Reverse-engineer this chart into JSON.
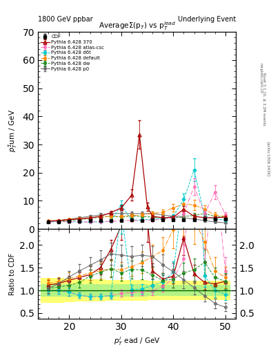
{
  "title_left": "1800 GeV ppbar",
  "title_right": "Underlying Event",
  "plot_title": "Average\\u03a3(p_T) vs p_T^{lead}",
  "ylabel_main": "$p_T^{\\Sigma}$um / GeV",
  "ylabel_ratio": "Ratio to CDF",
  "xlabel": "$p_T^l$ ead / GeV",
  "rivet_label": "Rivet 3.1.10, \\u2265 3.2M events",
  "arxiv_label": "[arXiv:1306.3436]",
  "mcplots_label": "mcplots.cern.ch",
  "xlim": [
    14.0,
    52.0
  ],
  "ylim_main": [
    0,
    70
  ],
  "ylim_ratio": [
    0.38,
    2.35
  ],
  "ratio_yticks": [
    0.5,
    1.0,
    1.5,
    2.0
  ],
  "main_yticks": [
    0,
    10,
    20,
    30,
    40,
    50,
    60,
    70
  ],
  "series": [
    {
      "label": "CDF",
      "color": "#000000",
      "marker": "s",
      "fillstyle": "full",
      "markersize": 4,
      "linestyle": "none",
      "linewidth": 0.8,
      "x": [
        16,
        18,
        20,
        22,
        24,
        26,
        28,
        30,
        32,
        34,
        36,
        38,
        40,
        42,
        44,
        46,
        48,
        50
      ],
      "y": [
        2.5,
        2.6,
        2.7,
        2.8,
        2.9,
        3.0,
        3.05,
        3.1,
        3.15,
        3.1,
        3.15,
        3.2,
        3.2,
        3.25,
        3.3,
        3.4,
        3.5,
        3.5
      ],
      "yerr": [
        0.15,
        0.15,
        0.15,
        0.12,
        0.12,
        0.12,
        0.12,
        0.12,
        0.12,
        0.12,
        0.12,
        0.12,
        0.12,
        0.12,
        0.15,
        0.15,
        0.18,
        0.18
      ]
    },
    {
      "label": "Pythia 6.428 370",
      "color": "#aa0000",
      "marker": "^",
      "fillstyle": "none",
      "markersize": 4,
      "linestyle": "-",
      "linewidth": 0.9,
      "x": [
        16,
        18,
        20,
        22,
        24,
        26,
        28,
        30,
        32,
        33.5,
        35,
        36,
        38,
        40,
        42,
        44,
        46,
        48,
        50
      ],
      "y": [
        2.8,
        3.0,
        3.3,
        3.6,
        3.9,
        4.5,
        5.8,
        7.5,
        12.0,
        33.5,
        8.0,
        4.5,
        4.0,
        4.2,
        7.0,
        4.5,
        4.0,
        4.0,
        4.2
      ],
      "yerr": [
        0.2,
        0.2,
        0.2,
        0.25,
        0.3,
        0.4,
        0.6,
        0.9,
        2.0,
        5.0,
        1.5,
        0.5,
        0.4,
        0.5,
        1.2,
        0.6,
        0.5,
        0.5,
        0.5
      ]
    },
    {
      "label": "Pythia 6.428 atlas-csc",
      "color": "#ff69b4",
      "marker": "o",
      "fillstyle": "none",
      "markersize": 3,
      "linestyle": "-.",
      "linewidth": 0.8,
      "x": [
        16,
        18,
        20,
        22,
        24,
        26,
        28,
        30,
        32,
        34,
        36,
        38,
        40,
        42,
        44,
        46,
        48,
        50
      ],
      "y": [
        2.5,
        2.6,
        2.6,
        2.5,
        2.5,
        2.6,
        2.7,
        2.9,
        3.0,
        3.0,
        3.1,
        3.5,
        4.0,
        5.5,
        15.0,
        5.5,
        13.0,
        5.0
      ],
      "yerr": [
        0.15,
        0.15,
        0.15,
        0.15,
        0.15,
        0.15,
        0.15,
        0.2,
        0.2,
        0.2,
        0.25,
        0.4,
        0.6,
        1.0,
        3.0,
        1.0,
        2.5,
        1.0
      ]
    },
    {
      "label": "Pythia 6.428 d6t",
      "color": "#00cccc",
      "marker": "D",
      "fillstyle": "full",
      "markersize": 3,
      "linestyle": "--",
      "linewidth": 0.8,
      "x": [
        16,
        18,
        20,
        22,
        24,
        26,
        28,
        30,
        32,
        34,
        36,
        38,
        40,
        42,
        44,
        46,
        48,
        50
      ],
      "y": [
        2.5,
        2.6,
        2.6,
        2.5,
        2.5,
        2.6,
        2.7,
        8.5,
        3.2,
        3.2,
        3.5,
        3.8,
        4.5,
        10.5,
        21.0,
        4.5,
        3.5,
        3.2
      ],
      "yerr": [
        0.15,
        0.15,
        0.15,
        0.15,
        0.15,
        0.15,
        0.2,
        1.5,
        0.3,
        0.3,
        0.4,
        0.5,
        0.7,
        2.0,
        4.0,
        0.8,
        0.5,
        0.4
      ]
    },
    {
      "label": "Pythia 6.428 default",
      "color": "#ff8800",
      "marker": "o",
      "fillstyle": "full",
      "markersize": 3,
      "linestyle": "-.",
      "linewidth": 0.8,
      "x": [
        16,
        18,
        20,
        22,
        24,
        26,
        28,
        30,
        32,
        34,
        36,
        38,
        40,
        42,
        44,
        46,
        48,
        50
      ],
      "y": [
        2.9,
        3.1,
        3.4,
        3.7,
        4.0,
        4.3,
        4.5,
        4.5,
        4.8,
        5.0,
        5.5,
        6.0,
        7.5,
        9.0,
        8.5,
        7.0,
        5.0,
        4.5
      ],
      "yerr": [
        0.2,
        0.2,
        0.3,
        0.3,
        0.4,
        0.5,
        0.5,
        0.5,
        0.6,
        0.7,
        0.8,
        0.9,
        1.3,
        1.8,
        1.8,
        1.5,
        1.0,
        0.8
      ]
    },
    {
      "label": "Pythia 6.428 dw",
      "color": "#228b22",
      "marker": "*",
      "fillstyle": "full",
      "markersize": 4,
      "linestyle": "--",
      "linewidth": 0.8,
      "x": [
        16,
        18,
        20,
        22,
        24,
        26,
        28,
        30,
        32,
        34,
        36,
        38,
        40,
        42,
        44,
        46,
        48,
        50
      ],
      "y": [
        2.6,
        2.8,
        3.0,
        3.3,
        3.8,
        4.2,
        4.5,
        4.3,
        4.6,
        4.5,
        4.2,
        3.9,
        4.0,
        4.5,
        4.8,
        5.5,
        4.5,
        4.2
      ],
      "yerr": [
        0.2,
        0.2,
        0.25,
        0.3,
        0.4,
        0.5,
        0.55,
        0.5,
        0.6,
        0.6,
        0.6,
        0.5,
        0.6,
        0.7,
        0.8,
        0.9,
        0.7,
        0.6
      ]
    },
    {
      "label": "Pythia 6.428 p0",
      "color": "#666666",
      "marker": "o",
      "fillstyle": "none",
      "markersize": 3,
      "linestyle": "-",
      "linewidth": 0.8,
      "x": [
        16,
        18,
        20,
        22,
        24,
        26,
        28,
        30,
        32,
        34,
        36,
        38,
        40,
        42,
        44,
        46,
        48,
        50
      ],
      "y": [
        2.6,
        3.0,
        3.5,
        4.0,
        4.5,
        5.0,
        5.5,
        5.5,
        5.5,
        5.5,
        5.5,
        5.0,
        4.5,
        4.0,
        3.5,
        3.0,
        2.5,
        2.2
      ],
      "yerr": [
        0.2,
        0.25,
        0.3,
        0.4,
        0.5,
        0.6,
        0.7,
        0.7,
        0.7,
        0.7,
        0.7,
        0.7,
        0.6,
        0.6,
        0.5,
        0.4,
        0.35,
        0.3
      ]
    }
  ],
  "band_x_edges": [
    14.5,
    17.0,
    19.0,
    21.0,
    23.0,
    25.0,
    27.0,
    29.0,
    31.0,
    33.0,
    35.0,
    37.0,
    39.0,
    41.0,
    43.0,
    45.0,
    47.0,
    49.0,
    51.0
  ],
  "band_yellow_lo": [
    0.72,
    0.73,
    0.74,
    0.75,
    0.76,
    0.76,
    0.77,
    0.77,
    0.77,
    0.77,
    0.78,
    0.78,
    0.78,
    0.78,
    0.78,
    0.78,
    0.78,
    0.78
  ],
  "band_yellow_hi": [
    1.28,
    1.27,
    1.26,
    1.25,
    1.24,
    1.24,
    1.23,
    1.23,
    1.23,
    1.23,
    1.22,
    1.22,
    1.22,
    1.22,
    1.22,
    1.22,
    1.22,
    1.22
  ],
  "band_green_lo": [
    0.86,
    0.87,
    0.87,
    0.87,
    0.87,
    0.87,
    0.87,
    0.87,
    0.87,
    0.87,
    0.88,
    0.88,
    0.88,
    0.88,
    0.88,
    0.88,
    0.88,
    0.88
  ],
  "band_green_hi": [
    1.14,
    1.13,
    1.13,
    1.13,
    1.13,
    1.13,
    1.13,
    1.13,
    1.13,
    1.13,
    1.12,
    1.12,
    1.12,
    1.12,
    1.12,
    1.12,
    1.12,
    1.12
  ]
}
